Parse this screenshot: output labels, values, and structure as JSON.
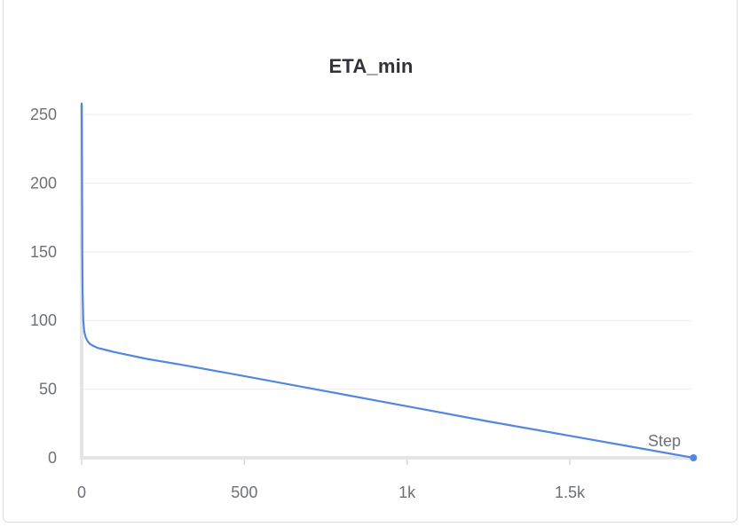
{
  "chart_data": {
    "type": "line",
    "title": "ETA_min",
    "xlabel": "Step",
    "ylabel": "",
    "xlim": [
      0,
      1880
    ],
    "ylim": [
      0,
      258
    ],
    "x_ticks": [
      {
        "value": 0,
        "label": "0"
      },
      {
        "value": 500,
        "label": "500"
      },
      {
        "value": 1000,
        "label": "1k"
      },
      {
        "value": 1500,
        "label": "1.5k"
      }
    ],
    "y_ticks": [
      {
        "value": 0,
        "label": "0"
      },
      {
        "value": 50,
        "label": "50"
      },
      {
        "value": 100,
        "label": "100"
      },
      {
        "value": 150,
        "label": "150"
      },
      {
        "value": 200,
        "label": "200"
      },
      {
        "value": 250,
        "label": "250"
      }
    ],
    "grid": true,
    "series": [
      {
        "color": "#5387dd",
        "x": [
          0,
          1,
          2,
          3,
          5,
          8,
          12,
          18,
          25,
          35,
          50,
          75,
          100,
          200,
          300,
          500,
          750,
          1000,
          1250,
          1500,
          1750,
          1880
        ],
        "y": [
          258,
          200,
          150,
          120,
          100,
          92,
          88,
          85,
          83,
          81.5,
          80,
          78.5,
          77,
          72,
          68,
          59.5,
          48.5,
          37.5,
          26.5,
          16,
          5.5,
          0
        ]
      }
    ]
  }
}
